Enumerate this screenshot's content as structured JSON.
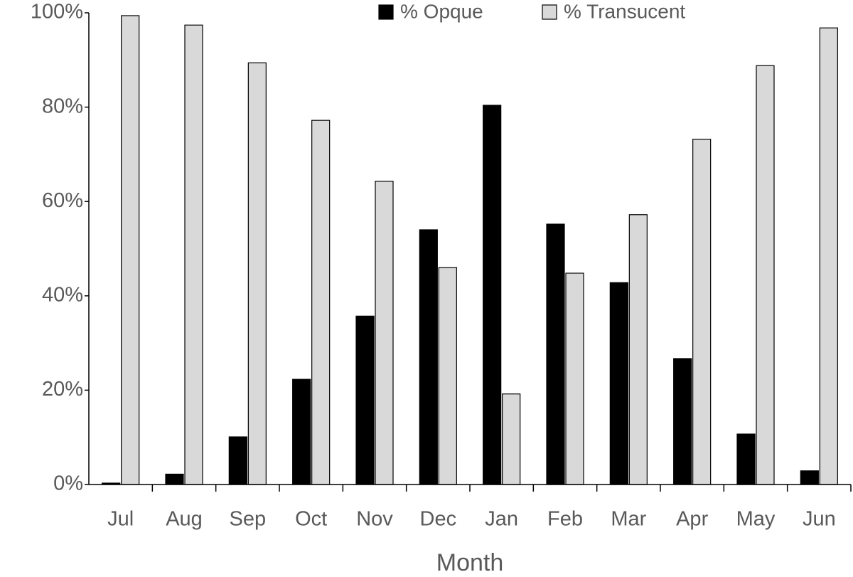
{
  "chart_data": {
    "type": "bar",
    "x_label": "Month",
    "categories": [
      "Jul",
      "Aug",
      "Sep",
      "Oct",
      "Nov",
      "Dec",
      "Jan",
      "Feb",
      "Mar",
      "Apr",
      "May",
      "Jun"
    ],
    "series": [
      {
        "name": "% Opque",
        "color": "#000000",
        "values": [
          0.3,
          2.2,
          10.1,
          22.3,
          35.7,
          54,
          80.4,
          55.2,
          42.8,
          26.7,
          10.7,
          2.9
        ]
      },
      {
        "name": "% Transucent",
        "color": "#d9d9d9",
        "values": [
          99.4,
          97.4,
          89.4,
          77.2,
          64.3,
          46,
          19.2,
          44.8,
          57.2,
          73.2,
          88.8,
          96.8
        ]
      }
    ],
    "ylim": [
      0,
      100
    ],
    "yticks": [
      {
        "value": 0,
        "label": "0%"
      },
      {
        "value": 20,
        "label": "20%"
      },
      {
        "value": 40,
        "label": "40%"
      },
      {
        "value": 60,
        "label": "60%"
      },
      {
        "value": 80,
        "label": "80%"
      },
      {
        "value": 100,
        "label": "100%"
      }
    ],
    "legend": "top",
    "grid": false
  }
}
